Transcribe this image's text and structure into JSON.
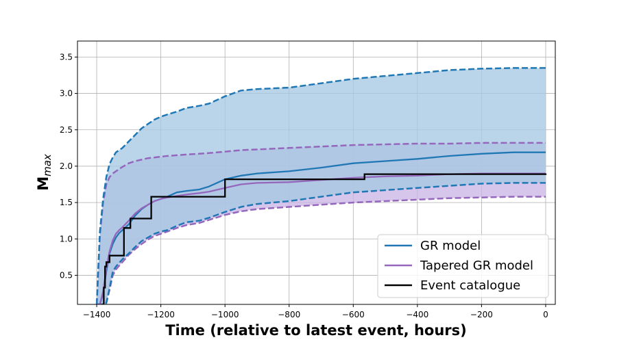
{
  "chart_data": {
    "type": "line",
    "title": "",
    "xlabel": "Time (relative to latest event, hours)",
    "ylabel_main": "M",
    "ylabel_sub": "max",
    "xlim": [
      -1460,
      30
    ],
    "ylim": [
      0.1,
      3.72
    ],
    "xticks": [
      -1400,
      -1200,
      -1000,
      -800,
      -600,
      -400,
      -200,
      0
    ],
    "yticks": [
      0.5,
      1.0,
      1.5,
      2.0,
      2.5,
      3.0,
      3.5
    ],
    "xtick_labels": [
      "−1400",
      "−1200",
      "−1000",
      "−800",
      "−600",
      "−400",
      "−200",
      "0"
    ],
    "ytick_labels": [
      "0.5",
      "1.0",
      "1.5",
      "2.0",
      "2.5",
      "3.0",
      "3.5"
    ],
    "grid": true,
    "legend_position": "lower-right",
    "colors": {
      "gr": "#1f77b4",
      "gr_band": "#a6c8e3",
      "tapered": "#9467bd",
      "tapered_band": "#c9b3e6",
      "event": "#000000"
    },
    "series": [
      {
        "name": "GR model",
        "x": [
          -1400,
          -1390,
          -1380,
          -1370,
          -1360,
          -1350,
          -1340,
          -1330,
          -1320,
          -1300,
          -1280,
          -1260,
          -1240,
          -1220,
          -1200,
          -1180,
          -1150,
          -1120,
          -1080,
          -1050,
          -1000,
          -950,
          -900,
          -800,
          -700,
          -600,
          -500,
          -400,
          -300,
          -200,
          -100,
          0
        ],
        "median": [
          0.1,
          0.1,
          0.25,
          0.55,
          0.8,
          0.93,
          1.02,
          1.08,
          1.12,
          1.2,
          1.32,
          1.41,
          1.47,
          1.52,
          1.55,
          1.58,
          1.64,
          1.66,
          1.68,
          1.72,
          1.82,
          1.87,
          1.9,
          1.93,
          1.98,
          2.04,
          2.07,
          2.1,
          2.14,
          2.17,
          2.19,
          2.19
        ],
        "upper": [
          0.1,
          1.1,
          1.55,
          1.85,
          2.03,
          2.12,
          2.19,
          2.22,
          2.25,
          2.34,
          2.43,
          2.52,
          2.58,
          2.64,
          2.68,
          2.71,
          2.75,
          2.8,
          2.83,
          2.86,
          2.96,
          3.04,
          3.06,
          3.08,
          3.14,
          3.2,
          3.24,
          3.28,
          3.32,
          3.34,
          3.35,
          3.35
        ],
        "lower": [
          0.1,
          0.1,
          0.1,
          0.12,
          0.32,
          0.55,
          0.62,
          0.67,
          0.72,
          0.8,
          0.89,
          0.97,
          1.02,
          1.07,
          1.1,
          1.12,
          1.18,
          1.23,
          1.25,
          1.29,
          1.37,
          1.44,
          1.48,
          1.52,
          1.58,
          1.64,
          1.67,
          1.7,
          1.73,
          1.76,
          1.77,
          1.77
        ]
      },
      {
        "name": "Tapered GR model",
        "x": [
          -1400,
          -1390,
          -1380,
          -1370,
          -1360,
          -1350,
          -1340,
          -1330,
          -1320,
          -1300,
          -1280,
          -1260,
          -1240,
          -1220,
          -1200,
          -1180,
          -1150,
          -1120,
          -1080,
          -1050,
          -1000,
          -950,
          -900,
          -800,
          -700,
          -600,
          -500,
          -400,
          -300,
          -200,
          -100,
          0
        ],
        "median": [
          0.1,
          0.1,
          0.28,
          0.6,
          0.83,
          0.98,
          1.07,
          1.12,
          1.16,
          1.25,
          1.35,
          1.42,
          1.47,
          1.52,
          1.55,
          1.57,
          1.59,
          1.61,
          1.63,
          1.65,
          1.7,
          1.75,
          1.77,
          1.78,
          1.81,
          1.84,
          1.86,
          1.87,
          1.89,
          1.9,
          1.9,
          1.9
        ],
        "upper": [
          0.1,
          1.05,
          1.5,
          1.75,
          1.85,
          1.9,
          1.93,
          1.96,
          1.99,
          2.04,
          2.07,
          2.09,
          2.11,
          2.12,
          2.13,
          2.14,
          2.15,
          2.16,
          2.17,
          2.18,
          2.2,
          2.22,
          2.23,
          2.25,
          2.27,
          2.29,
          2.3,
          2.31,
          2.31,
          2.32,
          2.32,
          2.32
        ],
        "lower": [
          0.1,
          0.1,
          0.1,
          0.12,
          0.3,
          0.5,
          0.58,
          0.63,
          0.68,
          0.78,
          0.86,
          0.93,
          0.99,
          1.04,
          1.07,
          1.1,
          1.15,
          1.19,
          1.22,
          1.26,
          1.33,
          1.38,
          1.41,
          1.44,
          1.47,
          1.5,
          1.52,
          1.54,
          1.56,
          1.57,
          1.58,
          1.58
        ]
      },
      {
        "name": "Event catalogue",
        "step_x": [
          -1382,
          -1378,
          -1374,
          -1370,
          -1360,
          -1325,
          -1315,
          -1295,
          -1270,
          -1230,
          -1000,
          -565,
          0
        ],
        "step_y": [
          0.1,
          0.33,
          0.62,
          0.68,
          0.77,
          0.77,
          1.15,
          1.28,
          1.28,
          1.58,
          1.82,
          1.89,
          1.9
        ]
      }
    ]
  }
}
